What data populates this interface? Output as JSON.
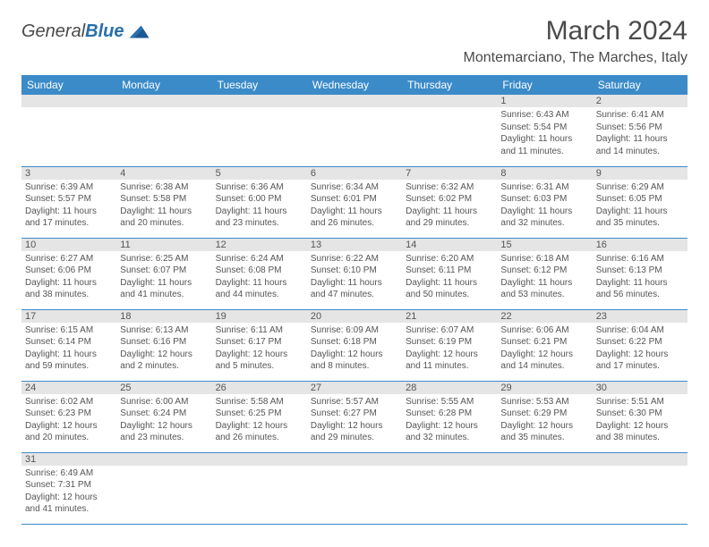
{
  "logo": {
    "text1": "General",
    "text2": "Blue"
  },
  "title": "March 2024",
  "location": "Montemarciano, The Marches, Italy",
  "colors": {
    "header_bg": "#3b8bc9",
    "header_text": "#ffffff",
    "daynum_bg": "#e5e5e5",
    "border": "#3b8bc9",
    "body_text": "#555555",
    "title_text": "#4a4a4a",
    "logo_accent": "#2a6faa"
  },
  "day_headers": [
    "Sunday",
    "Monday",
    "Tuesday",
    "Wednesday",
    "Thursday",
    "Friday",
    "Saturday"
  ],
  "weeks": [
    [
      null,
      null,
      null,
      null,
      null,
      {
        "n": "1",
        "sr": "Sunrise: 6:43 AM",
        "ss": "Sunset: 5:54 PM",
        "dl": "Daylight: 11 hours and 11 minutes."
      },
      {
        "n": "2",
        "sr": "Sunrise: 6:41 AM",
        "ss": "Sunset: 5:56 PM",
        "dl": "Daylight: 11 hours and 14 minutes."
      }
    ],
    [
      {
        "n": "3",
        "sr": "Sunrise: 6:39 AM",
        "ss": "Sunset: 5:57 PM",
        "dl": "Daylight: 11 hours and 17 minutes."
      },
      {
        "n": "4",
        "sr": "Sunrise: 6:38 AM",
        "ss": "Sunset: 5:58 PM",
        "dl": "Daylight: 11 hours and 20 minutes."
      },
      {
        "n": "5",
        "sr": "Sunrise: 6:36 AM",
        "ss": "Sunset: 6:00 PM",
        "dl": "Daylight: 11 hours and 23 minutes."
      },
      {
        "n": "6",
        "sr": "Sunrise: 6:34 AM",
        "ss": "Sunset: 6:01 PM",
        "dl": "Daylight: 11 hours and 26 minutes."
      },
      {
        "n": "7",
        "sr": "Sunrise: 6:32 AM",
        "ss": "Sunset: 6:02 PM",
        "dl": "Daylight: 11 hours and 29 minutes."
      },
      {
        "n": "8",
        "sr": "Sunrise: 6:31 AM",
        "ss": "Sunset: 6:03 PM",
        "dl": "Daylight: 11 hours and 32 minutes."
      },
      {
        "n": "9",
        "sr": "Sunrise: 6:29 AM",
        "ss": "Sunset: 6:05 PM",
        "dl": "Daylight: 11 hours and 35 minutes."
      }
    ],
    [
      {
        "n": "10",
        "sr": "Sunrise: 6:27 AM",
        "ss": "Sunset: 6:06 PM",
        "dl": "Daylight: 11 hours and 38 minutes."
      },
      {
        "n": "11",
        "sr": "Sunrise: 6:25 AM",
        "ss": "Sunset: 6:07 PM",
        "dl": "Daylight: 11 hours and 41 minutes."
      },
      {
        "n": "12",
        "sr": "Sunrise: 6:24 AM",
        "ss": "Sunset: 6:08 PM",
        "dl": "Daylight: 11 hours and 44 minutes."
      },
      {
        "n": "13",
        "sr": "Sunrise: 6:22 AM",
        "ss": "Sunset: 6:10 PM",
        "dl": "Daylight: 11 hours and 47 minutes."
      },
      {
        "n": "14",
        "sr": "Sunrise: 6:20 AM",
        "ss": "Sunset: 6:11 PM",
        "dl": "Daylight: 11 hours and 50 minutes."
      },
      {
        "n": "15",
        "sr": "Sunrise: 6:18 AM",
        "ss": "Sunset: 6:12 PM",
        "dl": "Daylight: 11 hours and 53 minutes."
      },
      {
        "n": "16",
        "sr": "Sunrise: 6:16 AM",
        "ss": "Sunset: 6:13 PM",
        "dl": "Daylight: 11 hours and 56 minutes."
      }
    ],
    [
      {
        "n": "17",
        "sr": "Sunrise: 6:15 AM",
        "ss": "Sunset: 6:14 PM",
        "dl": "Daylight: 11 hours and 59 minutes."
      },
      {
        "n": "18",
        "sr": "Sunrise: 6:13 AM",
        "ss": "Sunset: 6:16 PM",
        "dl": "Daylight: 12 hours and 2 minutes."
      },
      {
        "n": "19",
        "sr": "Sunrise: 6:11 AM",
        "ss": "Sunset: 6:17 PM",
        "dl": "Daylight: 12 hours and 5 minutes."
      },
      {
        "n": "20",
        "sr": "Sunrise: 6:09 AM",
        "ss": "Sunset: 6:18 PM",
        "dl": "Daylight: 12 hours and 8 minutes."
      },
      {
        "n": "21",
        "sr": "Sunrise: 6:07 AM",
        "ss": "Sunset: 6:19 PM",
        "dl": "Daylight: 12 hours and 11 minutes."
      },
      {
        "n": "22",
        "sr": "Sunrise: 6:06 AM",
        "ss": "Sunset: 6:21 PM",
        "dl": "Daylight: 12 hours and 14 minutes."
      },
      {
        "n": "23",
        "sr": "Sunrise: 6:04 AM",
        "ss": "Sunset: 6:22 PM",
        "dl": "Daylight: 12 hours and 17 minutes."
      }
    ],
    [
      {
        "n": "24",
        "sr": "Sunrise: 6:02 AM",
        "ss": "Sunset: 6:23 PM",
        "dl": "Daylight: 12 hours and 20 minutes."
      },
      {
        "n": "25",
        "sr": "Sunrise: 6:00 AM",
        "ss": "Sunset: 6:24 PM",
        "dl": "Daylight: 12 hours and 23 minutes."
      },
      {
        "n": "26",
        "sr": "Sunrise: 5:58 AM",
        "ss": "Sunset: 6:25 PM",
        "dl": "Daylight: 12 hours and 26 minutes."
      },
      {
        "n": "27",
        "sr": "Sunrise: 5:57 AM",
        "ss": "Sunset: 6:27 PM",
        "dl": "Daylight: 12 hours and 29 minutes."
      },
      {
        "n": "28",
        "sr": "Sunrise: 5:55 AM",
        "ss": "Sunset: 6:28 PM",
        "dl": "Daylight: 12 hours and 32 minutes."
      },
      {
        "n": "29",
        "sr": "Sunrise: 5:53 AM",
        "ss": "Sunset: 6:29 PM",
        "dl": "Daylight: 12 hours and 35 minutes."
      },
      {
        "n": "30",
        "sr": "Sunrise: 5:51 AM",
        "ss": "Sunset: 6:30 PM",
        "dl": "Daylight: 12 hours and 38 minutes."
      }
    ],
    [
      {
        "n": "31",
        "sr": "Sunrise: 6:49 AM",
        "ss": "Sunset: 7:31 PM",
        "dl": "Daylight: 12 hours and 41 minutes."
      },
      null,
      null,
      null,
      null,
      null,
      null
    ]
  ]
}
